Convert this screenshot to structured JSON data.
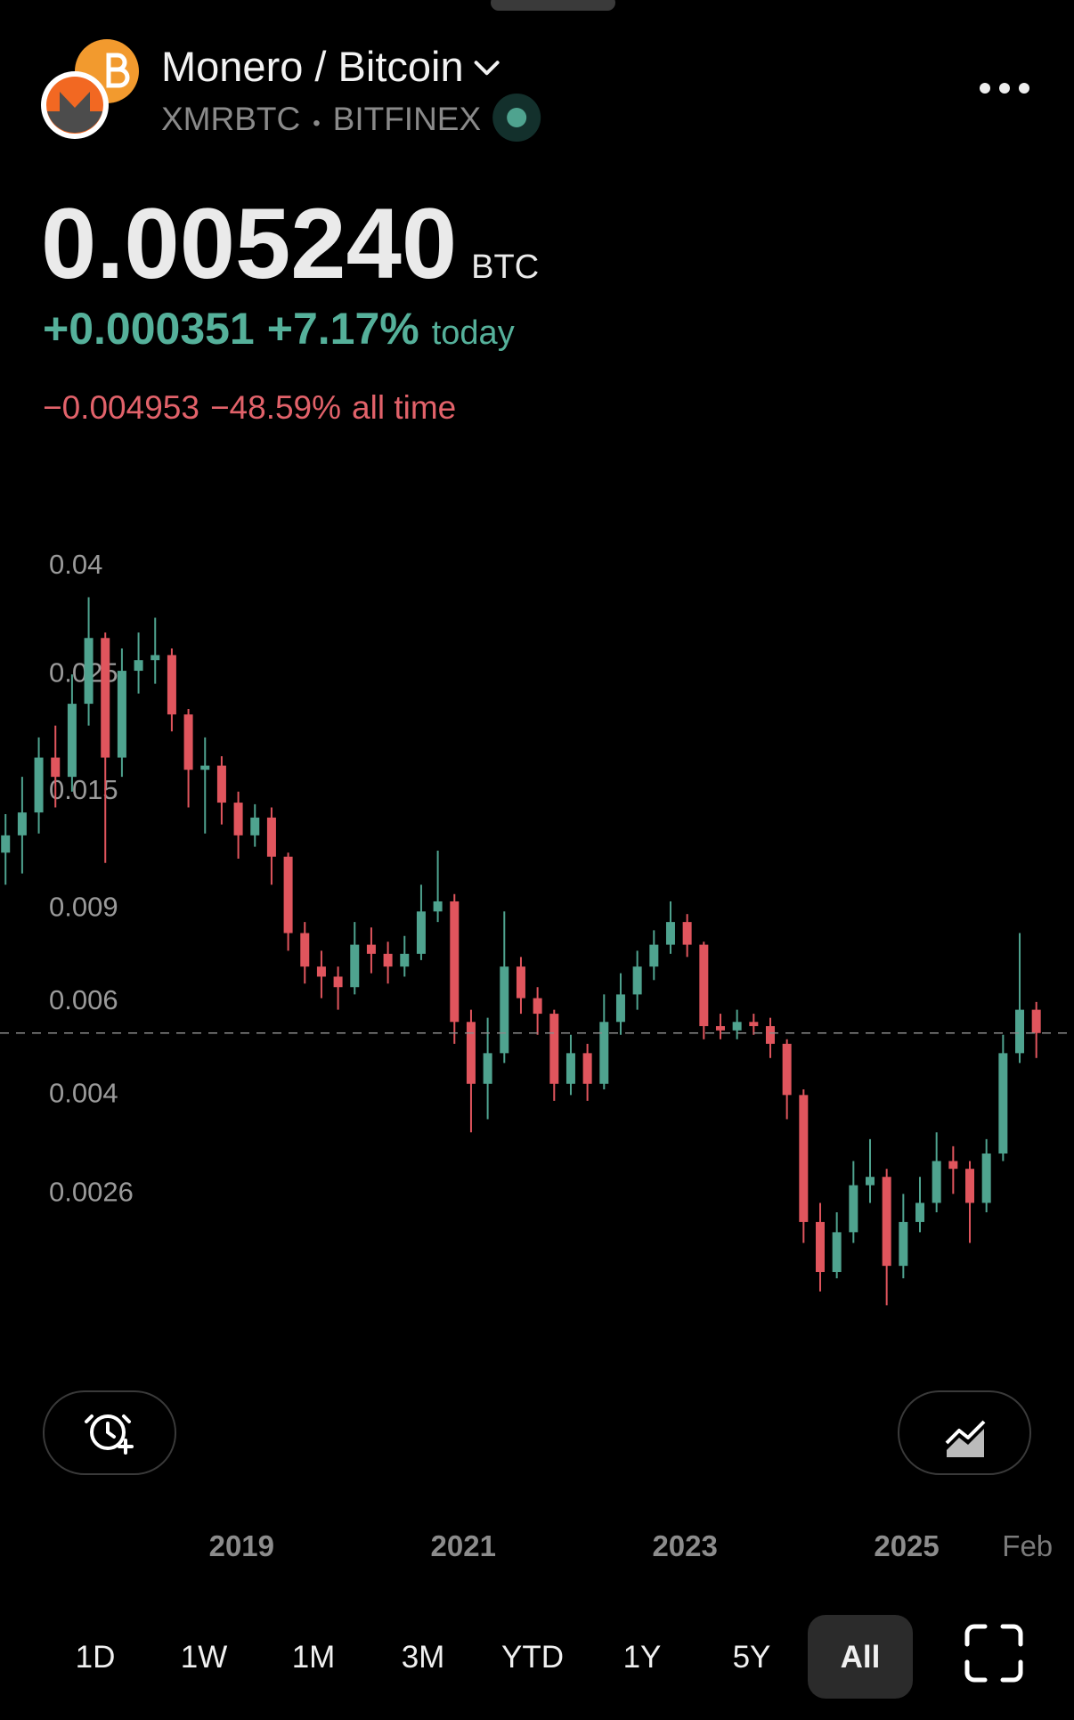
{
  "header": {
    "title": "Monero / Bitcoin",
    "symbol": "XMRBTC",
    "separator": "•",
    "exchange": "BITFINEX"
  },
  "quote": {
    "price": "0.005240",
    "currency": "BTC",
    "change": "+0.000351",
    "change_percent": "+7.17%",
    "period": "today",
    "all_time_change": "−0.004953",
    "all_time_percent": "−48.59%",
    "all_time_label": "all time"
  },
  "chart_data": {
    "type": "candlestick",
    "log_y": true,
    "up_color": "#4fa38f",
    "down_color": "#e0555d",
    "ylim": [
      0.00132,
      0.0453
    ],
    "yticks": [
      0.04,
      0.025,
      0.015,
      0.009,
      0.006,
      0.004,
      0.0026
    ],
    "xlim": [
      2016.82,
      2026.51
    ],
    "xticks": [
      2019,
      2021,
      2023,
      2025,
      {
        "value": 2026.09,
        "label": "Feb"
      }
    ],
    "x": [
      2016.87,
      2017.02,
      2017.17,
      2017.32,
      2017.47,
      2017.62,
      2017.77,
      2017.92,
      2018.07,
      2018.22,
      2018.37,
      2018.52,
      2018.67,
      2018.82,
      2018.97,
      2019.12,
      2019.27,
      2019.42,
      2019.57,
      2019.72,
      2019.87,
      2020.02,
      2020.17,
      2020.32,
      2020.47,
      2020.62,
      2020.77,
      2020.92,
      2021.07,
      2021.22,
      2021.37,
      2021.52,
      2021.67,
      2021.82,
      2021.97,
      2022.12,
      2022.27,
      2022.42,
      2022.57,
      2022.72,
      2022.87,
      2023.02,
      2023.17,
      2023.32,
      2023.47,
      2023.62,
      2023.77,
      2023.92,
      2024.07,
      2024.22,
      2024.37,
      2024.52,
      2024.67,
      2024.82,
      2024.97,
      2025.12,
      2025.27,
      2025.42,
      2025.57,
      2025.72,
      2025.87,
      2026.02,
      2026.17
    ],
    "open": [
      0.0115,
      0.0124,
      0.0137,
      0.0174,
      0.016,
      0.022,
      0.0293,
      0.0174,
      0.0254,
      0.0266,
      0.0272,
      0.021,
      0.0165,
      0.0168,
      0.0143,
      0.0124,
      0.0134,
      0.0113,
      0.0081,
      0.007,
      0.0067,
      0.0064,
      0.0077,
      0.0074,
      0.007,
      0.0074,
      0.0089,
      0.0093,
      0.0055,
      0.0042,
      0.0048,
      0.007,
      0.0061,
      0.0057,
      0.0042,
      0.0048,
      0.0042,
      0.0055,
      0.0062,
      0.007,
      0.0077,
      0.0085,
      0.0077,
      0.0054,
      0.0053,
      0.0055,
      0.0054,
      0.005,
      0.004,
      0.0023,
      0.00185,
      0.0022,
      0.0027,
      0.0028,
      0.0019,
      0.0023,
      0.0025,
      0.003,
      0.0029,
      0.0025,
      0.0031,
      0.0048,
      0.0058
    ],
    "high": [
      0.0136,
      0.016,
      0.019,
      0.02,
      0.025,
      0.035,
      0.03,
      0.028,
      0.03,
      0.032,
      0.028,
      0.0215,
      0.019,
      0.0175,
      0.015,
      0.0142,
      0.014,
      0.0115,
      0.0085,
      0.0075,
      0.007,
      0.0085,
      0.0083,
      0.0078,
      0.008,
      0.01,
      0.0116,
      0.0096,
      0.0058,
      0.0056,
      0.0089,
      0.0073,
      0.0064,
      0.0058,
      0.0052,
      0.005,
      0.0062,
      0.0068,
      0.0075,
      0.0082,
      0.0093,
      0.0088,
      0.0078,
      0.0057,
      0.0058,
      0.0057,
      0.0056,
      0.0051,
      0.0041,
      0.0025,
      0.0024,
      0.003,
      0.0033,
      0.0029,
      0.0026,
      0.0028,
      0.0034,
      0.0032,
      0.003,
      0.0033,
      0.0052,
      0.0081,
      0.006
    ],
    "low": [
      0.01,
      0.0105,
      0.0125,
      0.014,
      0.015,
      0.02,
      0.011,
      0.016,
      0.023,
      0.024,
      0.0195,
      0.014,
      0.0125,
      0.013,
      0.0112,
      0.0118,
      0.01,
      0.0075,
      0.0065,
      0.0061,
      0.0058,
      0.0062,
      0.0068,
      0.0065,
      0.0067,
      0.0072,
      0.0085,
      0.005,
      0.0034,
      0.0036,
      0.0046,
      0.0057,
      0.0052,
      0.0039,
      0.004,
      0.0039,
      0.0041,
      0.0052,
      0.0058,
      0.0066,
      0.0074,
      0.0073,
      0.0051,
      0.0051,
      0.0051,
      0.0052,
      0.0047,
      0.0036,
      0.0021,
      0.0017,
      0.0018,
      0.0021,
      0.0025,
      0.0016,
      0.0018,
      0.0022,
      0.0024,
      0.0026,
      0.0021,
      0.0024,
      0.003,
      0.0046,
      0.0047
    ],
    "close": [
      0.0124,
      0.0137,
      0.0174,
      0.016,
      0.022,
      0.0293,
      0.0174,
      0.0254,
      0.0266,
      0.0272,
      0.021,
      0.0165,
      0.0168,
      0.0143,
      0.0124,
      0.0134,
      0.0113,
      0.0081,
      0.007,
      0.0067,
      0.0064,
      0.0077,
      0.0074,
      0.007,
      0.0074,
      0.0089,
      0.0093,
      0.0055,
      0.0042,
      0.0048,
      0.007,
      0.0061,
      0.0057,
      0.0042,
      0.0048,
      0.0042,
      0.0055,
      0.0062,
      0.007,
      0.0077,
      0.0085,
      0.0077,
      0.0054,
      0.0053,
      0.0055,
      0.0054,
      0.005,
      0.004,
      0.0023,
      0.00185,
      0.0022,
      0.0027,
      0.0028,
      0.0019,
      0.0023,
      0.0025,
      0.003,
      0.0029,
      0.0025,
      0.0031,
      0.0048,
      0.0058,
      0.00524
    ]
  },
  "ranges": [
    "1D",
    "1W",
    "1M",
    "3M",
    "YTD",
    "1Y",
    "5Y",
    "All"
  ],
  "selected_range": "All"
}
